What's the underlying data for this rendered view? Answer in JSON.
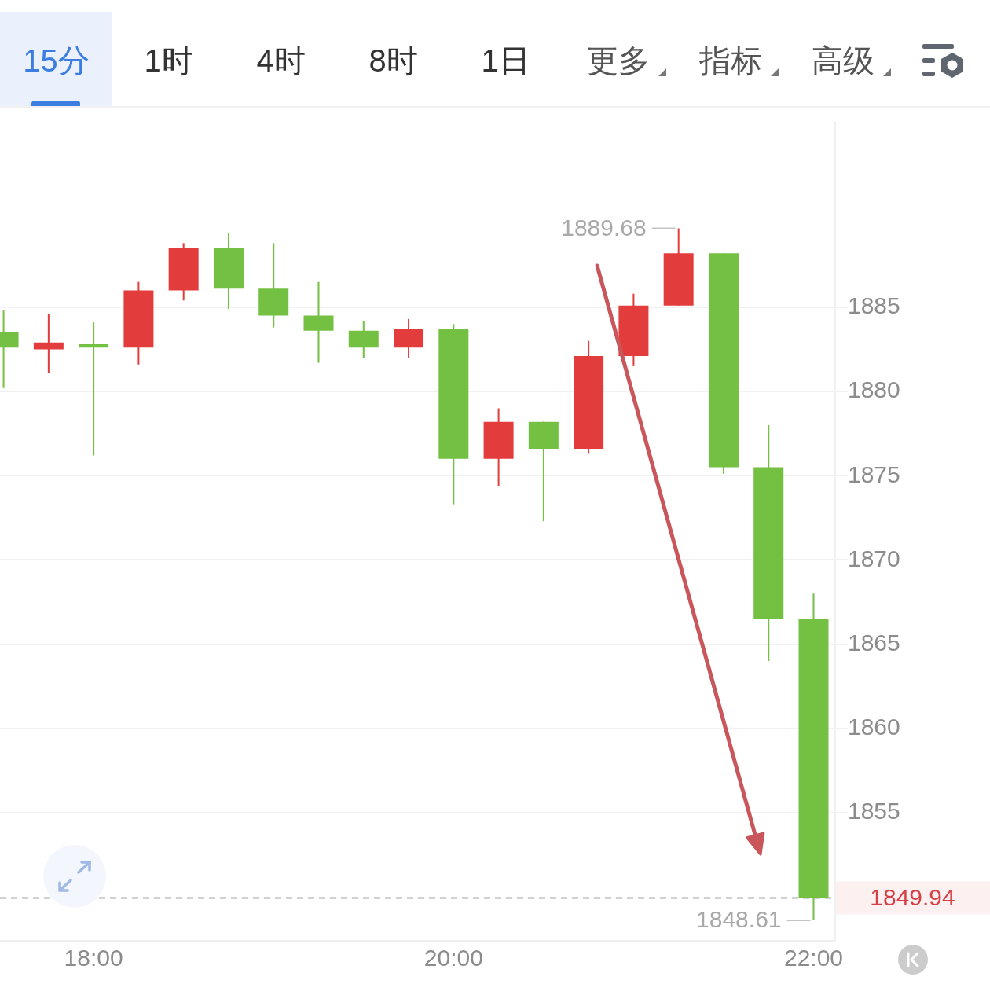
{
  "chart_data": {
    "type": "candlestick",
    "x": [
      17.5,
      17.75,
      18,
      18.25,
      18.5,
      18.75,
      19,
      19.25,
      19.5,
      19.75,
      20,
      20.25,
      20.5,
      20.75,
      21,
      21.25,
      21.5,
      21.75,
      22
    ],
    "ohlc": [
      [
        1883.5,
        1884.8,
        1880.2,
        1882.6
      ],
      [
        1882.5,
        1884.6,
        1881.1,
        1882.9
      ],
      [
        1882.8,
        1884.1,
        1876.2,
        1882.6
      ],
      [
        1882.6,
        1886.5,
        1881.6,
        1886.0
      ],
      [
        1886.0,
        1888.8,
        1885.4,
        1888.5
      ],
      [
        1888.5,
        1889.4,
        1884.9,
        1886.1
      ],
      [
        1886.1,
        1888.8,
        1883.8,
        1884.5
      ],
      [
        1884.5,
        1886.5,
        1881.7,
        1883.6
      ],
      [
        1883.6,
        1884.2,
        1882.0,
        1882.6
      ],
      [
        1882.6,
        1884.3,
        1882.0,
        1883.7
      ],
      [
        1883.7,
        1884.0,
        1873.3,
        1876.0
      ],
      [
        1876.0,
        1879.0,
        1874.4,
        1878.2
      ],
      [
        1878.2,
        1878.2,
        1872.3,
        1876.6
      ],
      [
        1876.6,
        1883.0,
        1876.3,
        1882.1
      ],
      [
        1882.1,
        1885.8,
        1881.5,
        1885.1
      ],
      [
        1885.1,
        1889.68,
        1885.1,
        1888.2
      ],
      [
        1888.2,
        1888.2,
        1875.1,
        1875.5
      ],
      [
        1875.5,
        1878.0,
        1864.0,
        1866.5
      ],
      [
        1866.5,
        1868.0,
        1848.61,
        1849.94
      ]
    ],
    "colors": [
      "#74c042",
      "#e23c3c",
      "#74c042",
      "#e23c3c",
      "#e23c3c",
      "#74c042",
      "#74c042",
      "#74c042",
      "#74c042",
      "#e23c3c",
      "#74c042",
      "#e23c3c",
      "#74c042",
      "#e23c3c",
      "#e23c3c",
      "#e23c3c",
      "#74c042",
      "#74c042",
      "#74c042"
    ],
    "xlim": [
      17.48,
      22.12
    ],
    "xticks": [
      {
        "value": 18,
        "label": "18:00"
      },
      {
        "value": 20,
        "label": "20:00"
      },
      {
        "value": 22,
        "label": "22:00"
      }
    ],
    "ylim": [
      1847.4,
      1896.0
    ],
    "yticks": [
      1855,
      1860,
      1865,
      1870,
      1875,
      1880,
      1885
    ],
    "grid": "y",
    "ref_lines": [
      {
        "axis": "y",
        "value": 1849.94,
        "label": "1849.94",
        "color": "#a6a6a6",
        "line_style": "dashed"
      }
    ],
    "annotations": [
      "15分",
      "1时",
      "4时",
      "8时",
      "1日",
      "更多",
      "指标",
      "高级",
      "1889.68",
      "1848.61"
    ]
  }
}
